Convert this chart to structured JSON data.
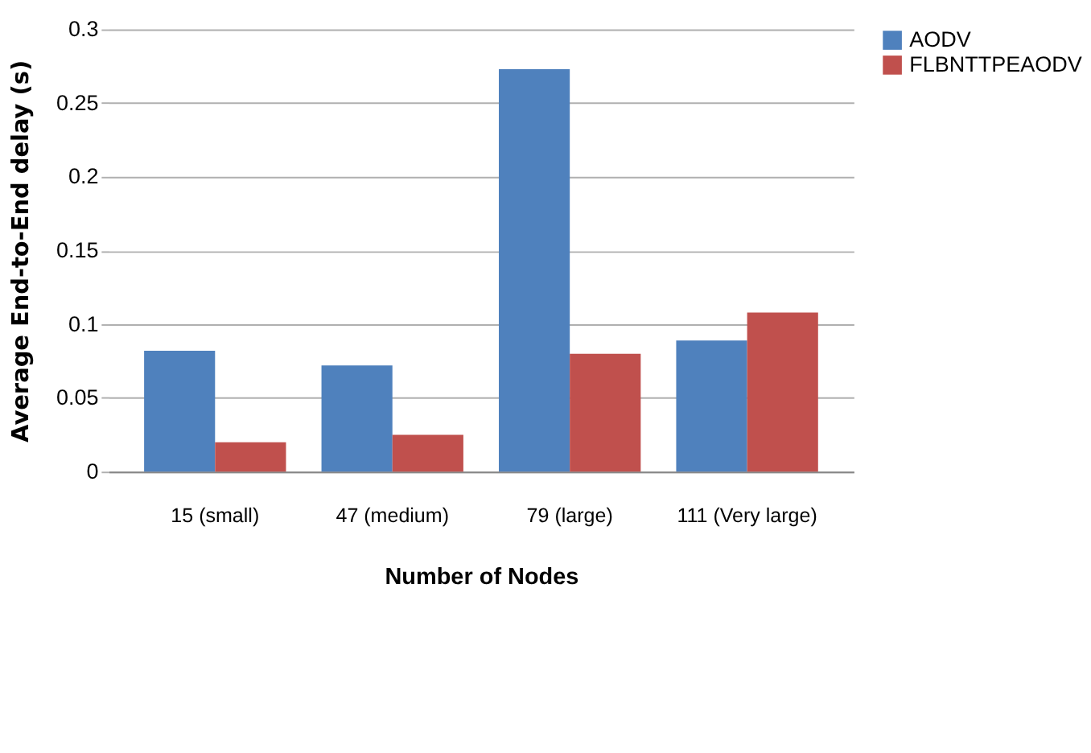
{
  "chart_data": {
    "type": "bar",
    "xlabel": "Number of Nodes",
    "ylabel": "Average End-to-End delay (s)",
    "categories": [
      "15 (small)",
      "47 (medium)",
      "79 (large)",
      "111 (Very large)"
    ],
    "series": [
      {
        "name": "AODV",
        "color": "#4f81bd",
        "values": [
          0.082,
          0.072,
          0.273,
          0.089
        ]
      },
      {
        "name": "FLBNTTPEAODV",
        "color": "#c0504d",
        "values": [
          0.02,
          0.025,
          0.08,
          0.108
        ]
      }
    ],
    "ylim": [
      0,
      0.3
    ],
    "yticks": [
      0,
      0.05,
      0.1,
      0.15,
      0.2,
      0.25,
      0.3
    ],
    "grid": "y",
    "legend": "right"
  }
}
